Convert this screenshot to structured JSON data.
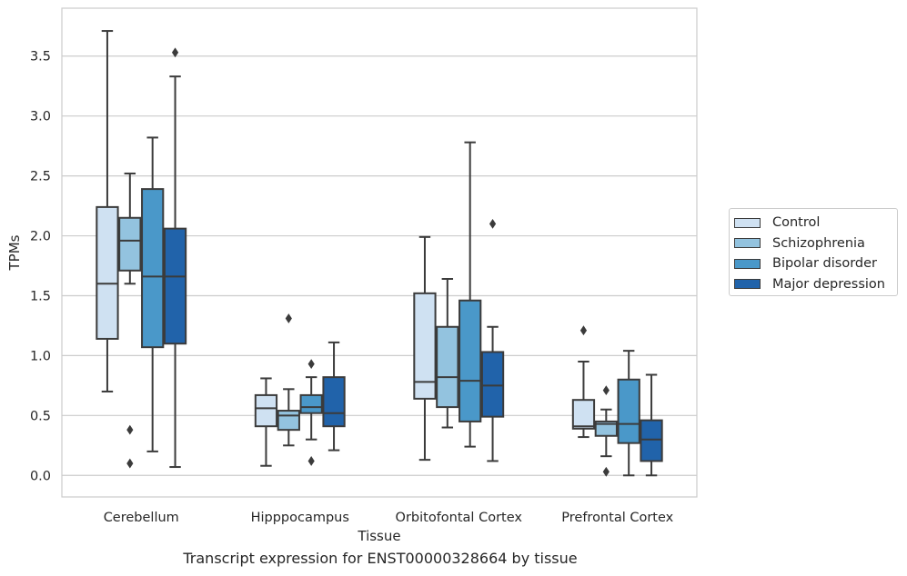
{
  "caption": "Transcript expression for ENST00000328664 by tissue",
  "chart_data": {
    "type": "box",
    "title": "",
    "xlabel": "Tissue",
    "ylabel": "TPMs",
    "ylim": [
      -0.18,
      3.9
    ],
    "yticks": [
      "0.0",
      "0.5",
      "1.0",
      "1.5",
      "2.0",
      "2.5",
      "3.0",
      "3.5"
    ],
    "grid": "horizontal",
    "legend_position": "right",
    "categories": [
      "Cerebellum",
      "Hipppocampus",
      "Orbitofontal Cortex",
      "Prefrontal Cortex"
    ],
    "series": [
      {
        "name": "Control",
        "color": "#cfe1f2",
        "boxes": [
          {
            "whislo": 0.7,
            "q1": 1.14,
            "med": 1.6,
            "q3": 2.24,
            "whishi": 3.71,
            "fliers": []
          },
          {
            "whislo": 0.08,
            "q1": 0.41,
            "med": 0.56,
            "q3": 0.67,
            "whishi": 0.81,
            "fliers": []
          },
          {
            "whislo": 0.13,
            "q1": 0.64,
            "med": 0.78,
            "q3": 1.52,
            "whishi": 1.99,
            "fliers": []
          },
          {
            "whislo": 0.32,
            "q1": 0.39,
            "med": 0.41,
            "q3": 0.63,
            "whishi": 0.95,
            "fliers": [
              1.21
            ]
          }
        ]
      },
      {
        "name": "Schizophrenia",
        "color": "#93c3df",
        "boxes": [
          {
            "whislo": 1.6,
            "q1": 1.71,
            "med": 1.96,
            "q3": 2.15,
            "whishi": 2.52,
            "fliers": [
              0.38,
              0.1
            ]
          },
          {
            "whislo": 0.25,
            "q1": 0.38,
            "med": 0.5,
            "q3": 0.54,
            "whishi": 0.72,
            "fliers": [
              1.31
            ]
          },
          {
            "whislo": 0.4,
            "q1": 0.57,
            "med": 0.82,
            "q3": 1.24,
            "whishi": 1.64,
            "fliers": []
          },
          {
            "whislo": 0.16,
            "q1": 0.33,
            "med": 0.43,
            "q3": 0.45,
            "whishi": 0.55,
            "fliers": [
              0.71,
              0.03
            ]
          }
        ]
      },
      {
        "name": "Bipolar disorder",
        "color": "#4a98c9",
        "boxes": [
          {
            "whislo": 0.2,
            "q1": 1.07,
            "med": 1.66,
            "q3": 2.39,
            "whishi": 2.82,
            "fliers": []
          },
          {
            "whislo": 0.3,
            "q1": 0.52,
            "med": 0.57,
            "q3": 0.67,
            "whishi": 0.82,
            "fliers": [
              0.93,
              0.12
            ]
          },
          {
            "whislo": 0.24,
            "q1": 0.45,
            "med": 0.79,
            "q3": 1.46,
            "whishi": 2.78,
            "fliers": []
          },
          {
            "whislo": 0.0,
            "q1": 0.27,
            "med": 0.43,
            "q3": 0.8,
            "whishi": 1.04,
            "fliers": []
          }
        ]
      },
      {
        "name": "Major depression",
        "color": "#2163aa",
        "boxes": [
          {
            "whislo": 0.07,
            "q1": 1.1,
            "med": 1.66,
            "q3": 2.06,
            "whishi": 3.33,
            "fliers": [
              3.53
            ]
          },
          {
            "whislo": 0.21,
            "q1": 0.41,
            "med": 0.52,
            "q3": 0.82,
            "whishi": 1.11,
            "fliers": []
          },
          {
            "whislo": 0.12,
            "q1": 0.49,
            "med": 0.75,
            "q3": 1.03,
            "whishi": 1.24,
            "fliers": [
              2.1
            ]
          },
          {
            "whislo": 0.0,
            "q1": 0.12,
            "med": 0.3,
            "q3": 0.46,
            "whishi": 0.84,
            "fliers": []
          }
        ]
      }
    ]
  }
}
